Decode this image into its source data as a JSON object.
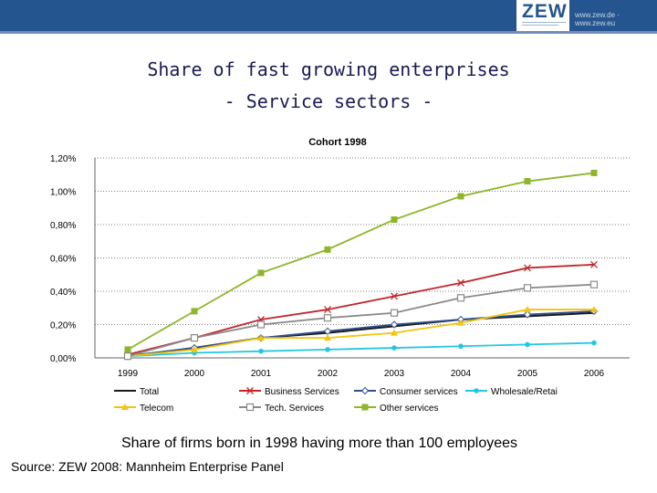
{
  "header": {
    "logo_text": "ZEW",
    "url_text": "www.zew.de · www.zew.eu"
  },
  "title_line1": "Share of fast growing enterprises",
  "title_line2": "- Service sectors -",
  "caption": "Share of firms born in 1998 having more than 100 employees",
  "source": "Source: ZEW 2008: Mannheim Enterprise Panel",
  "chart_data": {
    "type": "line",
    "title": "Cohort 1998",
    "xlabel": "",
    "ylabel": "",
    "categories": [
      "1999",
      "2000",
      "2001",
      "2002",
      "2003",
      "2004",
      "2005",
      "2006"
    ],
    "ylim": [
      0,
      1.2
    ],
    "yticks": [
      "0,00%",
      "0,20%",
      "0,40%",
      "0,60%",
      "0,80%",
      "1,00%",
      "1,20%"
    ],
    "grid": "horizontal dotted",
    "legend_position": "bottom",
    "series": [
      {
        "name": "Total",
        "color": "#1a1a1a",
        "marker": "none",
        "values": [
          0.01,
          0.06,
          0.12,
          0.15,
          0.19,
          0.23,
          0.25,
          0.27
        ]
      },
      {
        "name": "Business Services",
        "color": "#c0272d",
        "marker": "x",
        "values": [
          0.02,
          0.12,
          0.23,
          0.29,
          0.37,
          0.45,
          0.54,
          0.56
        ]
      },
      {
        "name": "Consumer services",
        "color": "#2f4f8f",
        "marker": "diamond",
        "values": [
          0.01,
          0.06,
          0.12,
          0.16,
          0.2,
          0.23,
          0.26,
          0.28
        ]
      },
      {
        "name": "Wholesale/Retai",
        "color": "#23c8e0",
        "marker": "dot",
        "values": [
          0.01,
          0.03,
          0.04,
          0.05,
          0.06,
          0.07,
          0.08,
          0.09
        ]
      },
      {
        "name": "Telecom",
        "color": "#f2c40f",
        "marker": "triangle",
        "values": [
          0.01,
          0.05,
          0.12,
          0.12,
          0.15,
          0.21,
          0.29,
          0.29
        ]
      },
      {
        "name": "Tech. Services",
        "color": "#8a8a8a",
        "marker": "square-open",
        "values": [
          0.01,
          0.12,
          0.2,
          0.24,
          0.27,
          0.36,
          0.42,
          0.44
        ]
      },
      {
        "name": "Other services",
        "color": "#8db62a",
        "marker": "square",
        "values": [
          0.05,
          0.28,
          0.51,
          0.65,
          0.83,
          0.97,
          1.06,
          1.11
        ]
      }
    ]
  }
}
